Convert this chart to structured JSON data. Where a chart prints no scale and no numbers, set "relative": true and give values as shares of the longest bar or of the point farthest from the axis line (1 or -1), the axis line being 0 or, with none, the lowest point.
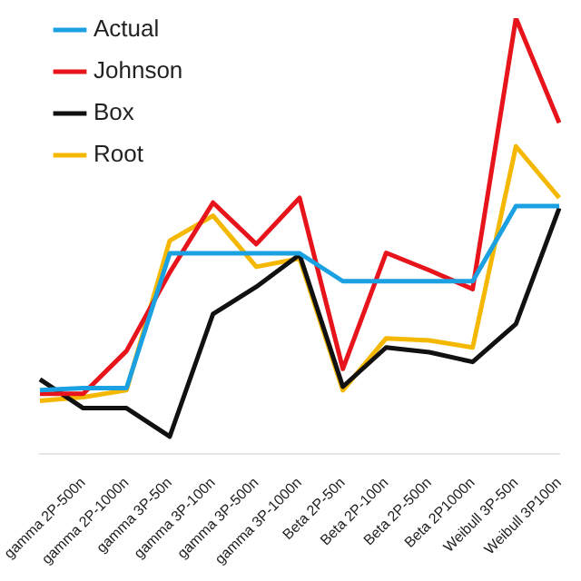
{
  "chart_data": {
    "type": "line",
    "relative": true,
    "legend": "top left",
    "marker": "none",
    "categories": [
      null,
      "gamma 2P-500n",
      "gamma 2P-1000n",
      "gamma 3P-50n",
      "gamma 3P-100n",
      "gamma 3P-500n",
      "gamma 3P-1000n",
      "Beta 2P-50n",
      "Beta 2P-100n",
      "Beta 2P-500n",
      "Beta 2P1000n",
      "Weibull 3P-50n",
      "Weibull 3P100n"
    ],
    "series": [
      {
        "name": "Actual",
        "color": "#1ba1e2",
        "values": [
          0.147,
          0.152,
          0.152,
          0.461,
          0.461,
          0.461,
          0.461,
          0.397,
          0.397,
          0.397,
          0.397,
          0.569,
          0.569
        ]
      },
      {
        "name": "Johnson",
        "color": "#e8141b",
        "values": [
          0.139,
          0.139,
          0.237,
          0.417,
          0.577,
          0.482,
          0.588,
          0.196,
          0.462,
          0.422,
          0.379,
          1,
          0.76
        ]
      },
      {
        "name": "Box",
        "color": "#111111",
        "values": [
          0.172,
          0.106,
          0.106,
          0.041,
          0.322,
          0.384,
          0.458,
          0.155,
          0.245,
          0.234,
          0.212,
          0.299,
          0.564
        ]
      },
      {
        "name": "Root",
        "color": "#f5b800",
        "values": [
          0.123,
          0.131,
          0.147,
          0.49,
          0.547,
          0.43,
          0.449,
          0.147,
          0.266,
          0.261,
          0.245,
          0.706,
          0.588
        ]
      }
    ]
  }
}
